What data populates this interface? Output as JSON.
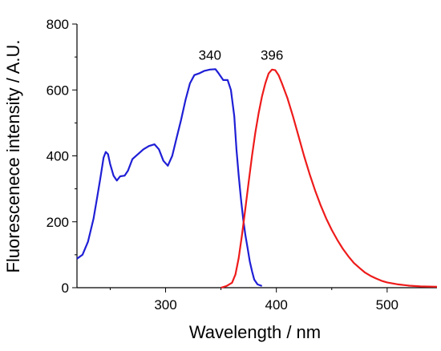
{
  "chart_data": {
    "type": "line",
    "title": "",
    "xlabel": "Wavelength / nm",
    "ylabel": "Fluorescenece intensity / A.U.",
    "xlim": [
      220,
      545
    ],
    "ylim": [
      0,
      800
    ],
    "x_ticks": [
      "300",
      "400",
      "500"
    ],
    "x_tick_values": [
      300,
      400,
      500
    ],
    "y_ticks": [
      "0",
      "200",
      "400",
      "600",
      "800"
    ],
    "y_tick_values": [
      0,
      200,
      400,
      600,
      800
    ],
    "grid": false,
    "annotations": [
      {
        "text": "340",
        "x": 340,
        "y": 668
      },
      {
        "text": "396",
        "x": 396,
        "y": 667
      }
    ],
    "series": [
      {
        "color": "#1f1fd6",
        "points": [
          [
            220,
            88
          ],
          [
            225,
            100
          ],
          [
            230,
            140
          ],
          [
            235,
            210
          ],
          [
            238,
            270
          ],
          [
            241,
            330
          ],
          [
            244,
            395
          ],
          [
            246,
            412
          ],
          [
            248,
            405
          ],
          [
            250,
            375
          ],
          [
            253,
            340
          ],
          [
            256,
            325
          ],
          [
            259,
            338
          ],
          [
            263,
            340
          ],
          [
            266,
            355
          ],
          [
            270,
            390
          ],
          [
            275,
            405
          ],
          [
            280,
            420
          ],
          [
            285,
            430
          ],
          [
            290,
            435
          ],
          [
            294,
            420
          ],
          [
            298,
            385
          ],
          [
            302,
            370
          ],
          [
            306,
            400
          ],
          [
            310,
            455
          ],
          [
            314,
            510
          ],
          [
            318,
            570
          ],
          [
            322,
            620
          ],
          [
            326,
            645
          ],
          [
            330,
            650
          ],
          [
            335,
            658
          ],
          [
            340,
            662
          ],
          [
            345,
            663
          ],
          [
            348,
            650
          ],
          [
            352,
            630
          ],
          [
            356,
            630
          ],
          [
            359,
            600
          ],
          [
            362,
            520
          ],
          [
            364,
            420
          ],
          [
            366,
            340
          ],
          [
            368,
            270
          ],
          [
            370,
            210
          ],
          [
            372,
            160
          ],
          [
            374,
            120
          ],
          [
            376,
            80
          ],
          [
            378,
            50
          ],
          [
            380,
            25
          ],
          [
            383,
            10
          ],
          [
            387,
            5
          ]
        ]
      },
      {
        "color": "#ee1b1b",
        "points": [
          [
            350,
            0
          ],
          [
            355,
            5
          ],
          [
            360,
            15
          ],
          [
            363,
            40
          ],
          [
            366,
            90
          ],
          [
            369,
            160
          ],
          [
            372,
            240
          ],
          [
            375,
            320
          ],
          [
            378,
            400
          ],
          [
            381,
            470
          ],
          [
            384,
            530
          ],
          [
            387,
            580
          ],
          [
            390,
            620
          ],
          [
            393,
            650
          ],
          [
            396,
            662
          ],
          [
            399,
            660
          ],
          [
            402,
            645
          ],
          [
            405,
            620
          ],
          [
            410,
            575
          ],
          [
            415,
            520
          ],
          [
            420,
            460
          ],
          [
            425,
            400
          ],
          [
            430,
            345
          ],
          [
            435,
            295
          ],
          [
            440,
            250
          ],
          [
            445,
            210
          ],
          [
            450,
            175
          ],
          [
            455,
            145
          ],
          [
            460,
            118
          ],
          [
            465,
            95
          ],
          [
            470,
            75
          ],
          [
            475,
            60
          ],
          [
            480,
            46
          ],
          [
            485,
            36
          ],
          [
            490,
            28
          ],
          [
            495,
            21
          ],
          [
            500,
            16
          ],
          [
            510,
            10
          ],
          [
            520,
            6
          ],
          [
            530,
            4
          ],
          [
            545,
            3
          ]
        ]
      }
    ]
  }
}
